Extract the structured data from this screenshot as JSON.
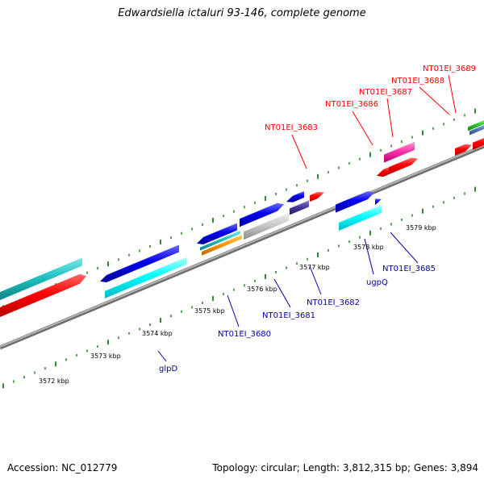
{
  "title": "Edwardsiella ictaluri 93-146, complete genome",
  "footer": {
    "accession": "Accession: NC_012779",
    "summary": "Topology: circular; Length: 3,812,315 bp; Genes: 3,894"
  },
  "kbp_ticks": [
    "3572 kbp",
    "3573 kbp",
    "3574 kbp",
    "3575 kbp",
    "3576 kbp",
    "3577 kbp",
    "3578 kbp",
    "3579 kbp"
  ],
  "gene_labels": {
    "top": [
      "NT01EI_3683",
      "NT01EI_3686",
      "NT01EI_3687",
      "NT01EI_3688",
      "NT01EI_3689"
    ],
    "bottom": [
      "glpD",
      "NT01EI_3680",
      "NT01EI_3681",
      "NT01EI_3682",
      "ugpQ",
      "NT01EI_3685"
    ]
  },
  "colors": {
    "red_label": "#ff0000",
    "blue_label": "#0000aa",
    "tick": "#2e8b2e",
    "backbone": "#8c8c8c",
    "cds_red": "#ff0000",
    "cds_blue": "#0000ee",
    "cds_cyan": "#00ffff",
    "cds_teal": "#20c0c0",
    "cds_magenta": "#ff33aa",
    "cds_gray": "#c8c8c8",
    "cds_purple": "#4a3a9a",
    "cds_orange": "#ff9900",
    "cds_green": "#33cc33"
  }
}
